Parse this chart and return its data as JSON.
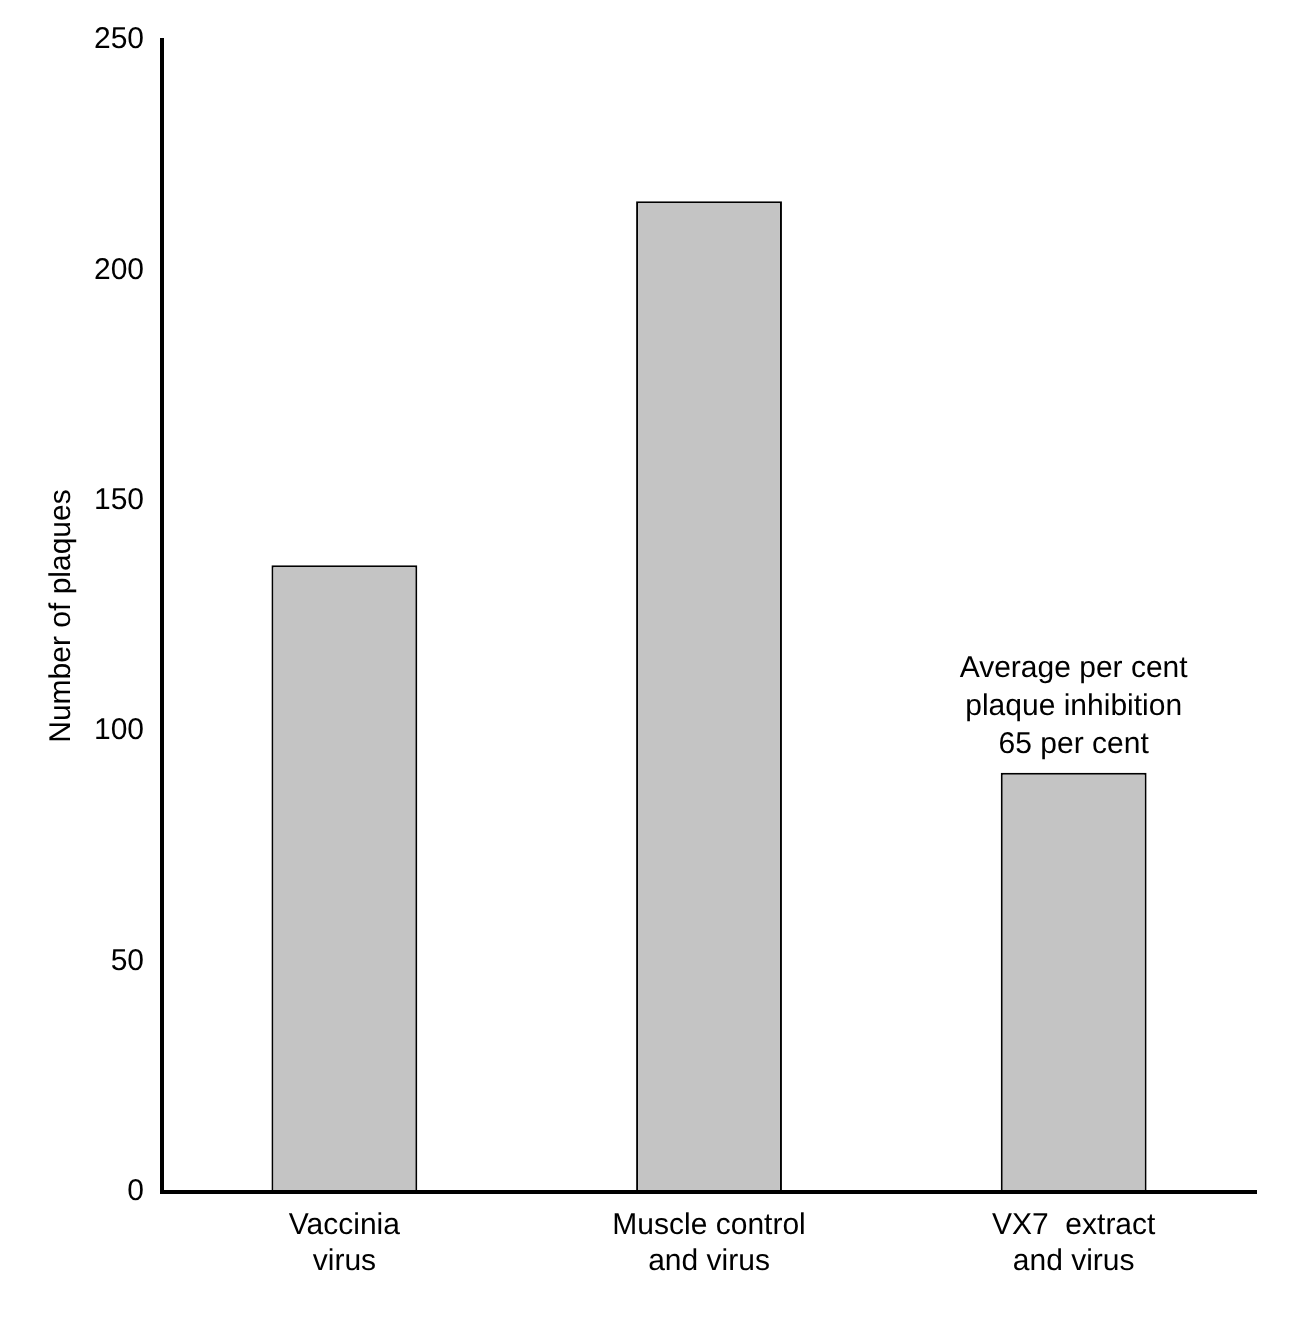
{
  "chart_data": {
    "type": "bar",
    "ylabel": "Number of plaques",
    "categories": [
      "Vaccinia\nvirus",
      "Muscle control\nand virus",
      "VX7  extract\nand virus"
    ],
    "values": [
      136,
      215,
      91
    ],
    "color": "#c4c4c4",
    "ylim": [
      0,
      250
    ],
    "yticks": [
      0,
      50,
      100,
      150,
      200,
      250
    ],
    "grid": false,
    "legend": false,
    "annotations": [
      {
        "text": "Average per cent\nplaque inhibition\n65 per cent",
        "x": "VX7  extract\nand virus",
        "y": 91
      }
    ]
  }
}
